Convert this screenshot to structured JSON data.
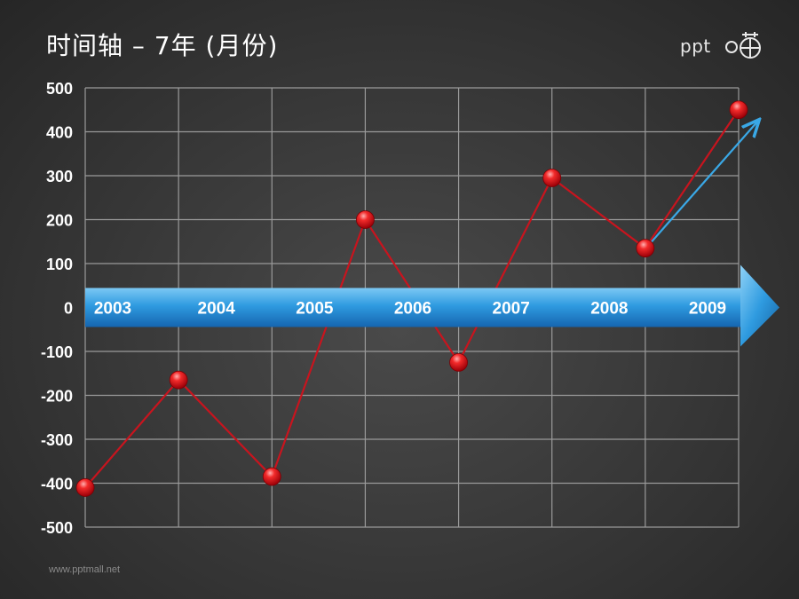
{
  "title": "时间轴 – 7年 (月份)",
  "logo": {
    "text": "ppt",
    "icon": "ppt-logo-icon"
  },
  "footer": "www.pptmall.net",
  "colors": {
    "grid": "#9a9a9a",
    "line": "#c8141e",
    "marker": "#e5141e",
    "arrow_band": "#2f9be0",
    "trend_arrow": "#3aa8e6"
  },
  "chart_data": {
    "type": "line",
    "title": "时间轴 – 7年 (月份)",
    "xlabel": "",
    "ylabel": "",
    "ylim": [
      -500,
      500
    ],
    "yticks": [
      500,
      400,
      300,
      200,
      100,
      0,
      -100,
      -200,
      -300,
      -400,
      -500
    ],
    "grid": true,
    "x": [
      0,
      1,
      2,
      3,
      4,
      5,
      6,
      7
    ],
    "series": [
      {
        "values": [
          -410,
          -165,
          -385,
          200,
          -125,
          295,
          135,
          450
        ]
      }
    ],
    "timeline_labels": [
      "2003",
      "2004",
      "2005",
      "2006",
      "2007",
      "2008",
      "2009"
    ],
    "trend_arrow": true
  }
}
